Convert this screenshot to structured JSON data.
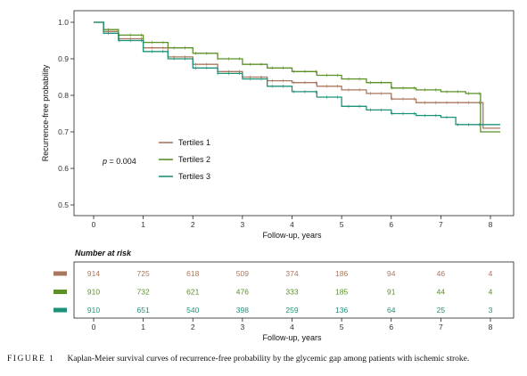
{
  "chart_data": {
    "type": "line",
    "ylabel": "Recurrence-free probability",
    "xlabel": "Follow-up, years",
    "xlim": [
      0,
      8
    ],
    "ylim": [
      0.5,
      1.0
    ],
    "x_ticks": [
      "0",
      "1",
      "2",
      "3",
      "4",
      "5",
      "6",
      "7",
      "8"
    ],
    "y_ticks": [
      "0.5",
      "0.6",
      "0.7",
      "0.8",
      "0.9",
      "1.0"
    ],
    "grid": false,
    "legend_position": "inside-left",
    "annotation": {
      "italic": "p",
      "text": " = 0.004"
    },
    "series": [
      {
        "name": "Tertiles 1",
        "color": "#a9775d",
        "points": [
          [
            0,
            1.0
          ],
          [
            0.2,
            0.975
          ],
          [
            0.5,
            0.955
          ],
          [
            1,
            0.93
          ],
          [
            1.5,
            0.905
          ],
          [
            2,
            0.885
          ],
          [
            2.5,
            0.865
          ],
          [
            3,
            0.85
          ],
          [
            3.5,
            0.84
          ],
          [
            4,
            0.835
          ],
          [
            4.5,
            0.825
          ],
          [
            5,
            0.815
          ],
          [
            5.5,
            0.805
          ],
          [
            6,
            0.79
          ],
          [
            6.5,
            0.78
          ],
          [
            7,
            0.78
          ],
          [
            7.6,
            0.78
          ],
          [
            7.85,
            0.78
          ],
          [
            7.85,
            0.71
          ],
          [
            8.2,
            0.71
          ]
        ]
      },
      {
        "name": "Tertiles 2",
        "color": "#5b9126",
        "points": [
          [
            0,
            1.0
          ],
          [
            0.2,
            0.98
          ],
          [
            0.5,
            0.965
          ],
          [
            1,
            0.945
          ],
          [
            1.5,
            0.93
          ],
          [
            2,
            0.915
          ],
          [
            2.5,
            0.9
          ],
          [
            3,
            0.885
          ],
          [
            3.5,
            0.875
          ],
          [
            4,
            0.865
          ],
          [
            4.5,
            0.855
          ],
          [
            5,
            0.845
          ],
          [
            5.5,
            0.835
          ],
          [
            6,
            0.82
          ],
          [
            6.5,
            0.815
          ],
          [
            7,
            0.81
          ],
          [
            7.5,
            0.805
          ],
          [
            7.8,
            0.805
          ],
          [
            7.8,
            0.7
          ],
          [
            8.2,
            0.7
          ]
        ]
      },
      {
        "name": "Tertiles 3",
        "color": "#1d9279",
        "points": [
          [
            0,
            1.0
          ],
          [
            0.2,
            0.97
          ],
          [
            0.5,
            0.95
          ],
          [
            1,
            0.92
          ],
          [
            1.5,
            0.9
          ],
          [
            2,
            0.875
          ],
          [
            2.5,
            0.86
          ],
          [
            3,
            0.845
          ],
          [
            3.5,
            0.825
          ],
          [
            4,
            0.81
          ],
          [
            4.5,
            0.795
          ],
          [
            5,
            0.77
          ],
          [
            5.5,
            0.76
          ],
          [
            6,
            0.75
          ],
          [
            6.5,
            0.745
          ],
          [
            7,
            0.74
          ],
          [
            7.3,
            0.72
          ],
          [
            7.9,
            0.72
          ],
          [
            8.2,
            0.72
          ]
        ]
      }
    ],
    "risk_table": {
      "title": "Number at risk",
      "xlabel": "Follow-up, years",
      "rows": [
        {
          "color": "#a9775d",
          "values": [
            "914",
            "725",
            "618",
            "509",
            "374",
            "186",
            "94",
            "46",
            "4"
          ]
        },
        {
          "color": "#5b9126",
          "values": [
            "910",
            "732",
            "621",
            "476",
            "333",
            "185",
            "91",
            "44",
            "4"
          ]
        },
        {
          "color": "#1d9279",
          "values": [
            "910",
            "651",
            "540",
            "398",
            "259",
            "136",
            "64",
            "25",
            "3"
          ]
        }
      ]
    }
  },
  "caption": {
    "label": "FIGURE 1",
    "text": "Kaplan-Meier survival curves of recurrence-free probability by the glycemic gap among patients with ischemic stroke."
  }
}
